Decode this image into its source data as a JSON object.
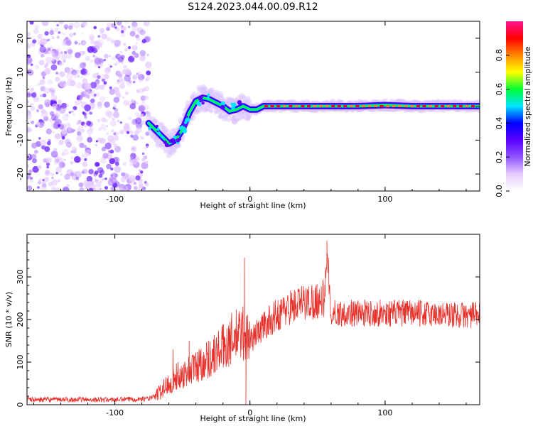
{
  "title": "S124.2023.044.00.09.R12",
  "chart_data": [
    {
      "type": "heatmap",
      "title": "S124.2023.044.00.09.R12",
      "xlabel": "Height of straight line (km)",
      "ylabel": "Frequency (Hz)",
      "xlim": [
        -165,
        170
      ],
      "ylim": [
        -25,
        25
      ],
      "xticks": [
        -100,
        0,
        100
      ],
      "yticks": [
        -20,
        -10,
        0,
        10,
        20
      ],
      "colorbar": {
        "label": "Normalized spectral amplitude",
        "range": [
          0,
          1
        ],
        "ticks": [
          0.0,
          0.2,
          0.4,
          0.6,
          0.8
        ],
        "colors": [
          "#ffffff",
          "#e6ccff",
          "#8f55ff",
          "#5a00ff",
          "#0000ff",
          "#00e5ff",
          "#00ff33",
          "#ffff00",
          "#ff8800",
          "#ff0000",
          "#ff1493"
        ]
      },
      "ridge": {
        "x": [
          -75,
          -70,
          -65,
          -60,
          -55,
          -50,
          -45,
          -40,
          -35,
          -30,
          -25,
          -20,
          -15,
          -10,
          -5,
          0,
          5,
          10,
          20,
          40,
          60,
          80,
          100,
          120,
          140,
          160,
          170
        ],
        "y": [
          -5,
          -7,
          -9,
          -11,
          -10,
          -7,
          -2,
          1.5,
          2.5,
          2,
          1,
          0,
          -1.5,
          -1,
          0,
          -1,
          -1,
          0,
          0,
          0,
          0,
          0,
          0.3,
          0,
          0,
          0,
          0
        ]
      },
      "noise_region_x": [
        -165,
        -75
      ]
    },
    {
      "type": "line",
      "xlabel": "Height of straight line (km)",
      "ylabel": "SNR (10 * v/v)",
      "xlim": [
        -165,
        170
      ],
      "ylim": [
        0,
        400
      ],
      "xticks": [
        -100,
        0,
        100
      ],
      "yticks": [
        0,
        100,
        200,
        300
      ],
      "color": "#e8302a",
      "envelope": {
        "x": [
          -165,
          -140,
          -100,
          -75,
          -70,
          -65,
          -60,
          -55,
          -50,
          -45,
          -40,
          -35,
          -30,
          -25,
          -20,
          -15,
          -10,
          -5,
          0,
          10,
          20,
          30,
          40,
          50,
          55,
          56,
          57,
          58,
          59,
          60,
          65,
          80,
          100,
          120,
          140,
          160,
          170
        ],
        "y": [
          12,
          12,
          12,
          14,
          20,
          35,
          50,
          65,
          70,
          80,
          90,
          100,
          110,
          120,
          135,
          150,
          160,
          170,
          150,
          185,
          210,
          230,
          240,
          245,
          250,
          290,
          330,
          320,
          250,
          215,
          215,
          215,
          215,
          215,
          212,
          210,
          210
        ]
      },
      "spikes": [
        {
          "x": -4,
          "y": 345
        },
        {
          "x": -3,
          "y": 0
        },
        {
          "x": -57,
          "y": 130
        },
        {
          "x": -45,
          "y": 150
        },
        {
          "x": 57,
          "y": 385
        }
      ]
    }
  ]
}
